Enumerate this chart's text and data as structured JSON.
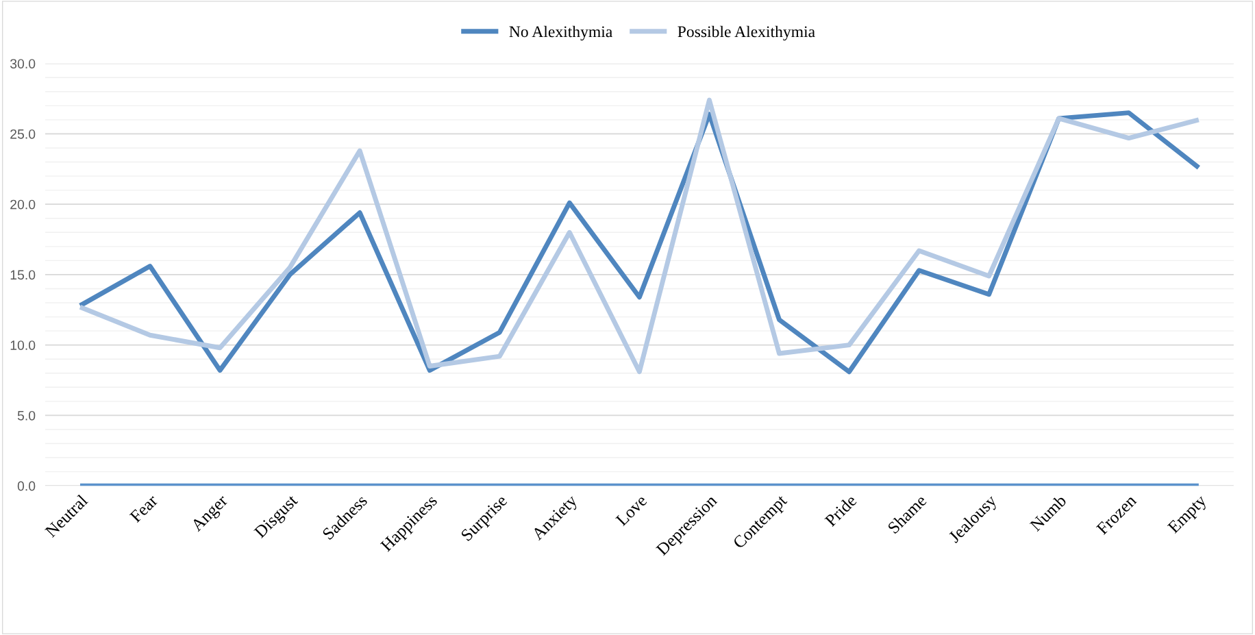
{
  "chart_data": {
    "type": "line",
    "categories": [
      "Neutral",
      "Fear",
      "Anger",
      "Disgust",
      "Sadness",
      "Happiness",
      "Surprise",
      "Anxiety",
      "Love",
      "Depression",
      "Contempt",
      "Pride",
      "Shame",
      "Jealousy",
      "Numb",
      "Frozen",
      "Empty"
    ],
    "series": [
      {
        "name": "No Alexithymia",
        "color": "#4f86bf",
        "values": [
          12.8,
          15.6,
          8.2,
          15.0,
          19.4,
          8.2,
          10.9,
          20.1,
          13.4,
          26.4,
          11.8,
          8.1,
          15.3,
          13.6,
          26.1,
          26.5,
          22.6
        ]
      },
      {
        "name": "Possible Alexithymia",
        "color": "#b4c9e4",
        "values": [
          12.7,
          10.7,
          9.8,
          15.5,
          23.8,
          8.5,
          9.2,
          18.0,
          8.1,
          27.4,
          9.4,
          10.0,
          16.7,
          14.9,
          26.1,
          24.7,
          26.0
        ]
      },
      {
        "color": "#5b92cc",
        "values": [
          0,
          0,
          0,
          0,
          0,
          0,
          0,
          0,
          0,
          0,
          0,
          0,
          0,
          0,
          0,
          0,
          0
        ]
      }
    ],
    "ylim": [
      0,
      30
    ],
    "yticks": [
      {
        "value": 0,
        "label": "0.0"
      },
      {
        "value": 5,
        "label": "5.0"
      },
      {
        "value": 10,
        "label": "10.0"
      },
      {
        "value": 15,
        "label": "15.0"
      },
      {
        "value": 20,
        "label": "20.0"
      },
      {
        "value": 25,
        "label": "25.0"
      },
      {
        "value": 30,
        "label": "30.0"
      }
    ],
    "grid": "y",
    "legend": "top",
    "marker": "none",
    "line_style": "solid"
  }
}
